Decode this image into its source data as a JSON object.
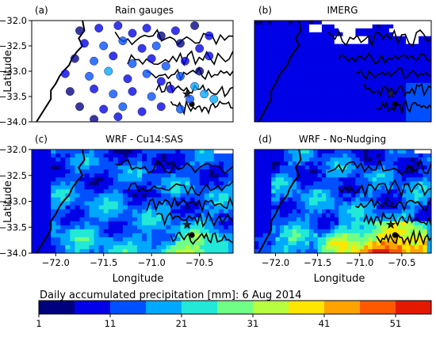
{
  "chart_data": {
    "type": "heatmap",
    "panels": [
      {
        "id": "a",
        "label": "(a)",
        "title": "Rain gauges",
        "kind": "gauges"
      },
      {
        "id": "b",
        "label": "(b)",
        "title": "IMERG",
        "kind": "imerg"
      },
      {
        "id": "c",
        "label": "(c)",
        "title": "WRF - Cu14:SAS",
        "kind": "wrf"
      },
      {
        "id": "d",
        "label": "(d)",
        "title": "WRF - No-Nudging",
        "kind": "wrf2"
      }
    ],
    "xlabel": "Longitude",
    "ylabel": "Latitude",
    "xlim": [
      -72.25,
      -70.15
    ],
    "ylim": [
      -34.0,
      -32.0
    ],
    "xticks": [
      -72.0,
      -71.5,
      -71.0,
      -70.5
    ],
    "xtick_labels": [
      "−72.0",
      "−71.5",
      "−71.0",
      "−70.5"
    ],
    "yticks": [
      -32.0,
      -32.5,
      -33.0,
      -33.5,
      -34.0
    ],
    "ytick_labels": [
      "−32.0",
      "−32.5",
      "−33.0",
      "−33.5",
      "−34.0"
    ],
    "markers": [
      {
        "type": "star",
        "lon": -70.63,
        "lat": -33.45
      },
      {
        "type": "dot",
        "lon": -70.58,
        "lat": -33.65
      }
    ],
    "colorbar": {
      "label": "Daily accumulated precipitation [mm]: 6 Aug 2014",
      "bounds": [
        1,
        6,
        11,
        16,
        21,
        26,
        31,
        36,
        41,
        46,
        51,
        56
      ],
      "tick_values": [
        1,
        11,
        21,
        31,
        41,
        51
      ],
      "tick_labels": [
        "1",
        "11",
        "21",
        "31",
        "41",
        "51"
      ],
      "colors": [
        "#00007f",
        "#0000e6",
        "#0050ff",
        "#00a8ff",
        "#22e8d8",
        "#70ff86",
        "#b6ff40",
        "#ffe600",
        "#ffa300",
        "#ff5900",
        "#e41a00",
        "#860000"
      ]
    },
    "gauges": [
      {
        "lon": -71.75,
        "lat": -32.2,
        "v": 4
      },
      {
        "lon": -71.55,
        "lat": -32.15,
        "v": 8
      },
      {
        "lon": -71.35,
        "lat": -32.1,
        "v": 10
      },
      {
        "lon": -71.2,
        "lat": -32.25,
        "v": 6
      },
      {
        "lon": -71.05,
        "lat": -32.15,
        "v": 9
      },
      {
        "lon": -70.9,
        "lat": -32.3,
        "v": 5
      },
      {
        "lon": -70.75,
        "lat": -32.2,
        "v": 7
      },
      {
        "lon": -70.55,
        "lat": -32.1,
        "v": 3
      },
      {
        "lon": -70.4,
        "lat": -32.3,
        "v": 6
      },
      {
        "lon": -71.7,
        "lat": -32.45,
        "v": 9
      },
      {
        "lon": -71.5,
        "lat": -32.5,
        "v": 12
      },
      {
        "lon": -71.3,
        "lat": -32.4,
        "v": 14
      },
      {
        "lon": -71.1,
        "lat": -32.55,
        "v": 8
      },
      {
        "lon": -70.95,
        "lat": -32.5,
        "v": 11
      },
      {
        "lon": -70.7,
        "lat": -32.45,
        "v": 4
      },
      {
        "lon": -70.5,
        "lat": -32.55,
        "v": 9
      },
      {
        "lon": -71.8,
        "lat": -32.75,
        "v": 5
      },
      {
        "lon": -71.6,
        "lat": -32.8,
        "v": 15
      },
      {
        "lon": -71.4,
        "lat": -32.7,
        "v": 10
      },
      {
        "lon": -71.2,
        "lat": -32.85,
        "v": 13
      },
      {
        "lon": -71.0,
        "lat": -32.75,
        "v": 7
      },
      {
        "lon": -70.85,
        "lat": -32.9,
        "v": 12
      },
      {
        "lon": -70.65,
        "lat": -32.8,
        "v": 6
      },
      {
        "lon": -70.4,
        "lat": -32.7,
        "v": 10
      },
      {
        "lon": -71.9,
        "lat": -33.05,
        "v": 6
      },
      {
        "lon": -71.65,
        "lat": -33.1,
        "v": 11
      },
      {
        "lon": -71.45,
        "lat": -33.0,
        "v": 16
      },
      {
        "lon": -71.25,
        "lat": -33.15,
        "v": 9
      },
      {
        "lon": -71.05,
        "lat": -33.05,
        "v": 14
      },
      {
        "lon": -70.9,
        "lat": -33.2,
        "v": 8
      },
      {
        "lon": -70.7,
        "lat": -33.1,
        "v": 12
      },
      {
        "lon": -70.5,
        "lat": -33.0,
        "v": 5
      },
      {
        "lon": -71.85,
        "lat": -33.4,
        "v": 4
      },
      {
        "lon": -71.6,
        "lat": -33.35,
        "v": 10
      },
      {
        "lon": -71.4,
        "lat": -33.45,
        "v": 13
      },
      {
        "lon": -71.2,
        "lat": -33.4,
        "v": 7
      },
      {
        "lon": -71.0,
        "lat": -33.5,
        "v": 11
      },
      {
        "lon": -70.8,
        "lat": -33.35,
        "v": 9
      },
      {
        "lon": -70.55,
        "lat": -33.3,
        "v": 17
      },
      {
        "lon": -70.45,
        "lat": -33.45,
        "v": 19
      },
      {
        "lon": -70.35,
        "lat": -33.55,
        "v": 18
      },
      {
        "lon": -70.6,
        "lat": -33.55,
        "v": 14
      },
      {
        "lon": -71.75,
        "lat": -33.7,
        "v": 5
      },
      {
        "lon": -71.5,
        "lat": -33.75,
        "v": 8
      },
      {
        "lon": -71.3,
        "lat": -33.7,
        "v": 12
      },
      {
        "lon": -71.1,
        "lat": -33.8,
        "v": 6
      },
      {
        "lon": -70.9,
        "lat": -33.7,
        "v": 10
      },
      {
        "lon": -70.7,
        "lat": -33.75,
        "v": 13
      },
      {
        "lon": -71.6,
        "lat": -33.95,
        "v": 4
      },
      {
        "lon": -71.35,
        "lat": -33.9,
        "v": 9
      }
    ]
  }
}
